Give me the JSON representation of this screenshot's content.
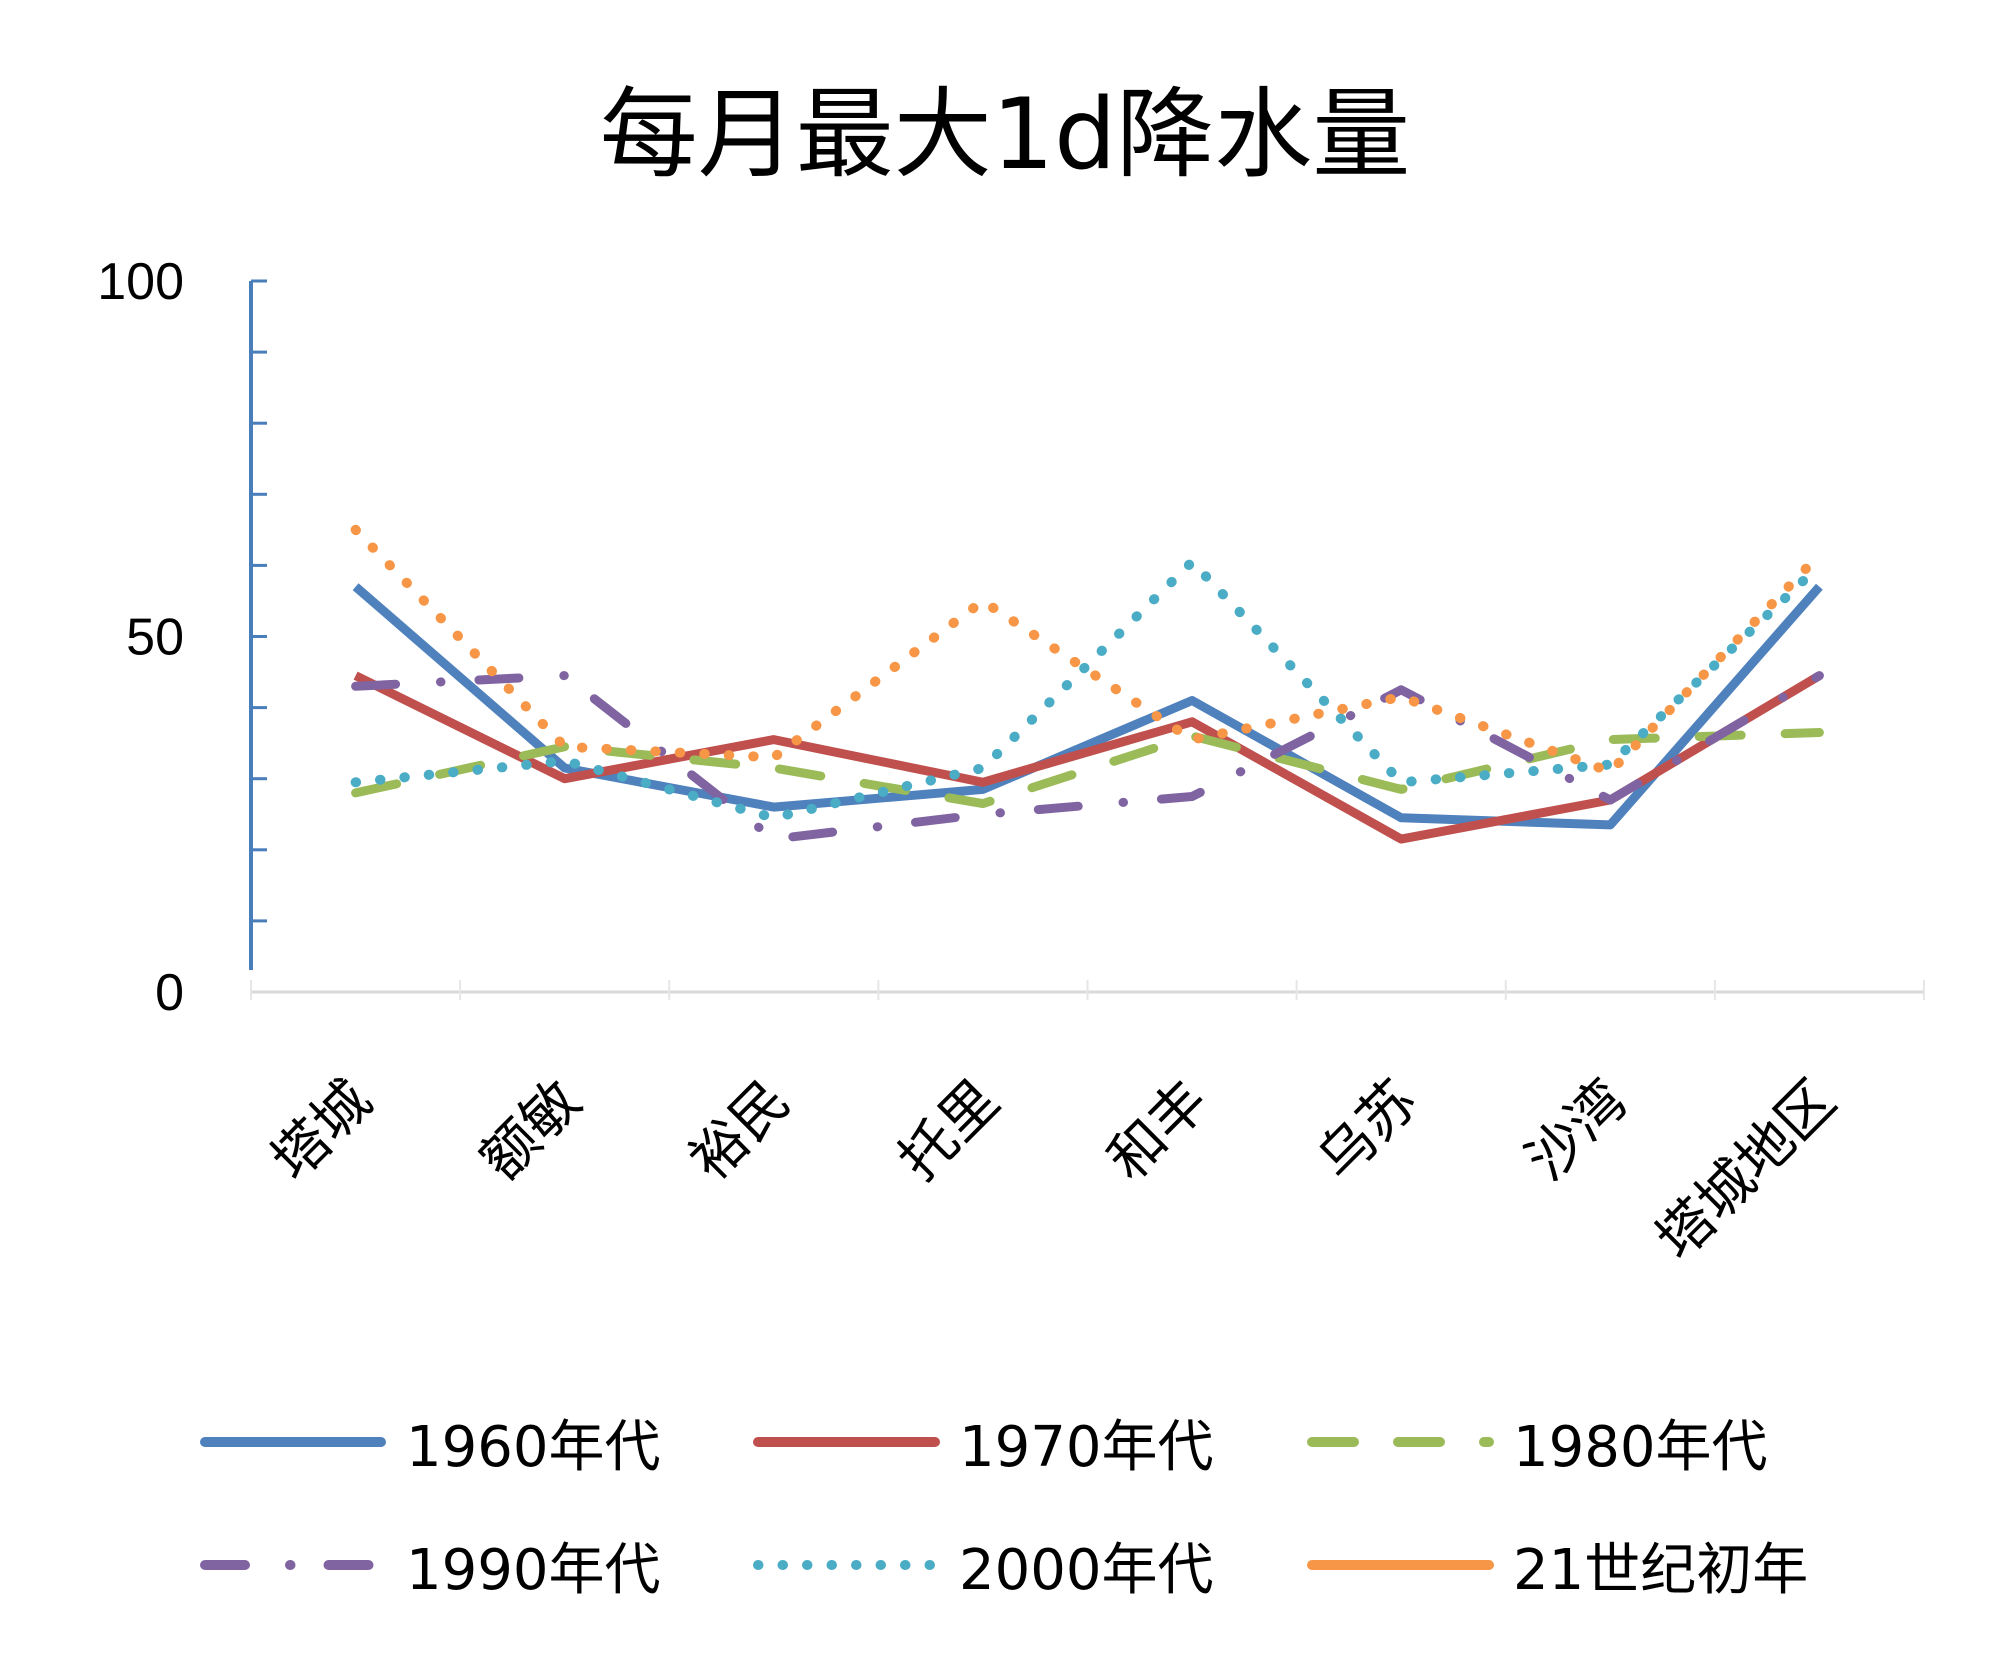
{
  "chart_data": {
    "type": "line",
    "title": "每月最大1d降水量",
    "xlabel": "",
    "ylabel": "",
    "categories": [
      "塔城",
      "额敏",
      "裕民",
      "托里",
      "和丰",
      "乌苏",
      "沙湾",
      "塔城地区"
    ],
    "ylim": [
      0,
      100
    ],
    "yticks": [
      0,
      50,
      100
    ],
    "y_minor_step": 10,
    "grid": false,
    "legend_position": "bottom",
    "series": [
      {
        "name": "1960年代",
        "color": "#4F81BD",
        "dash": "solid",
        "legend_dash": "solid",
        "values": [
          57,
          31.5,
          26,
          28.5,
          41,
          24.5,
          23.5,
          57
        ]
      },
      {
        "name": "1970年代",
        "color": "#C0504D",
        "dash": "solid",
        "legend_dash": "solid",
        "values": [
          44.5,
          30,
          35.5,
          29.5,
          38,
          21.5,
          27,
          44.5
        ]
      },
      {
        "name": "1980年代",
        "color": "#9BBB59",
        "dash": "dash",
        "legend_dash": "dash",
        "values": [
          28,
          34.5,
          31.5,
          26.5,
          36,
          28.5,
          35.5,
          36.5
        ]
      },
      {
        "name": "1990年代",
        "color": "#8064A2",
        "dash": "long-dash-dot",
        "legend_dash": "long-dash-dot",
        "values": [
          43,
          44.5,
          21.5,
          25,
          27.5,
          42.5,
          27,
          44.5
        ]
      },
      {
        "name": "2000年代",
        "color": "#4BACC6",
        "dash": "round-dot",
        "legend_dash": "round-dot",
        "values": [
          29.5,
          32.5,
          24.5,
          31.5,
          60.5,
          29.5,
          32,
          60
        ]
      },
      {
        "name": "21世纪初年",
        "color": "#F79646",
        "dash": "round-dot",
        "legend_dash": "solid",
        "values": [
          65,
          34.5,
          33,
          55,
          35.5,
          41.5,
          31,
          61.5
        ]
      }
    ]
  }
}
